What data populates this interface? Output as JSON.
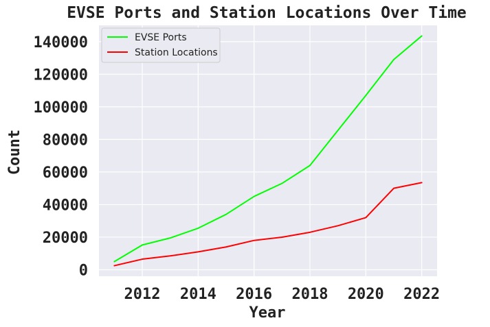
{
  "chart_data": {
    "type": "line",
    "title": "EVSE Ports and Station Locations Over Time",
    "xlabel": "Year",
    "ylabel": "Count",
    "x": [
      2011,
      2012,
      2013,
      2014,
      2015,
      2016,
      2017,
      2018,
      2019,
      2020,
      2021,
      2022
    ],
    "xlim": [
      2010.45,
      2022.55
    ],
    "ylim": [
      -4000,
      150000
    ],
    "xticks": [
      2012,
      2014,
      2016,
      2018,
      2020,
      2022
    ],
    "yticks": [
      0,
      20000,
      40000,
      60000,
      80000,
      100000,
      120000,
      140000
    ],
    "grid": true,
    "legend_position": "top-left",
    "series": [
      {
        "name": "EVSE Ports",
        "color": "#00ff00",
        "values": [
          5000,
          15200,
          19500,
          25500,
          34000,
          45000,
          53000,
          64000,
          85500,
          107000,
          129000,
          143500
        ]
      },
      {
        "name": "Station Locations",
        "color": "#ff0000",
        "values": [
          2500,
          6500,
          8500,
          11000,
          14000,
          18000,
          20000,
          23000,
          27000,
          32000,
          50000,
          53500
        ]
      }
    ]
  }
}
